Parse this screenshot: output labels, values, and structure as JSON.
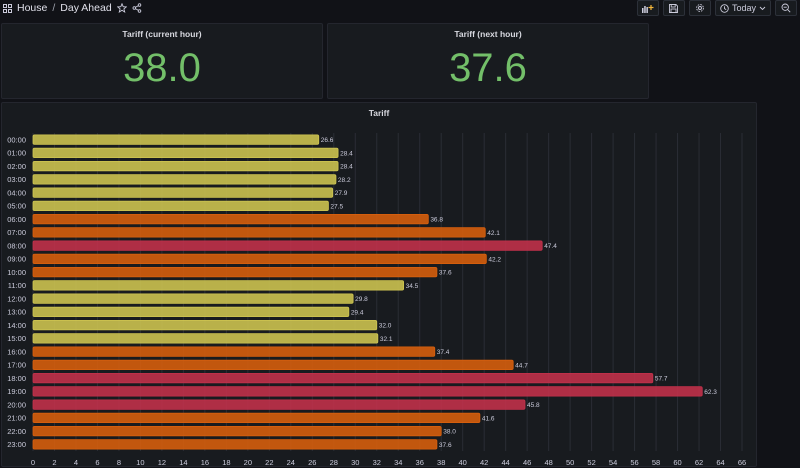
{
  "topbar": {
    "crumb_root": "House",
    "crumb_separator": "/",
    "crumb_page": "Day Ahead",
    "time_range_label": "Today",
    "icons": [
      "dashboard-grid-icon",
      "star-icon",
      "share-icon",
      "add-panel-icon",
      "save-icon",
      "settings-gear-icon",
      "clock-icon",
      "chevron-down-icon",
      "zoom-out-icon"
    ]
  },
  "panels": {
    "current": {
      "title": "Tariff (current hour)",
      "value": "38.0"
    },
    "next": {
      "title": "Tariff (next hour)",
      "value": "37.6"
    },
    "bar": {
      "title": "Tariff"
    }
  },
  "colors": {
    "background": "#111217",
    "panel": "#181b1f",
    "stat_green": "#73bf69",
    "bar_low": "#cfc651",
    "bar_mid": "#d9600d",
    "bar_high": "#c4314b"
  },
  "chart_data": {
    "type": "bar",
    "orientation": "horizontal",
    "title": "Tariff",
    "categories": [
      "00:00",
      "01:00",
      "02:00",
      "03:00",
      "04:00",
      "05:00",
      "06:00",
      "07:00",
      "08:00",
      "09:00",
      "10:00",
      "11:00",
      "12:00",
      "13:00",
      "14:00",
      "15:00",
      "16:00",
      "17:00",
      "18:00",
      "19:00",
      "20:00",
      "21:00",
      "22:00",
      "23:00"
    ],
    "values": [
      26.6,
      28.4,
      28.4,
      28.2,
      27.9,
      27.5,
      36.8,
      42.1,
      47.4,
      42.2,
      37.6,
      34.5,
      29.8,
      29.4,
      32.0,
      32.1,
      37.4,
      44.7,
      57.7,
      62.3,
      45.8,
      41.6,
      38.0,
      37.6
    ],
    "value_labels": [
      "26.6",
      "28.4",
      "28.4",
      "28.2",
      "27.9",
      "27.5",
      "36.8",
      "42.1",
      "47.4",
      "42.2",
      "37.6",
      "34.5",
      "29.8",
      "29.4",
      "32.0",
      "32.1",
      "37.4",
      "44.7",
      "57.7",
      "62.3",
      "45.8",
      "41.6",
      "38.0",
      "37.6"
    ],
    "xlim": [
      0,
      66
    ],
    "x_ticks": [
      "0",
      "2",
      "4",
      "6",
      "8",
      "10",
      "12",
      "14",
      "16",
      "18",
      "20",
      "22",
      "24",
      "26",
      "28",
      "30",
      "32",
      "34",
      "36",
      "38",
      "40",
      "42",
      "44",
      "46",
      "48",
      "50",
      "52",
      "54",
      "56",
      "58",
      "60",
      "62",
      "64",
      "66"
    ],
    "grid": true,
    "thresholds": [
      {
        "min": 0,
        "color": "#cfc651"
      },
      {
        "min": 35,
        "color": "#d9600d"
      },
      {
        "min": 45,
        "color": "#c4314b"
      }
    ]
  }
}
